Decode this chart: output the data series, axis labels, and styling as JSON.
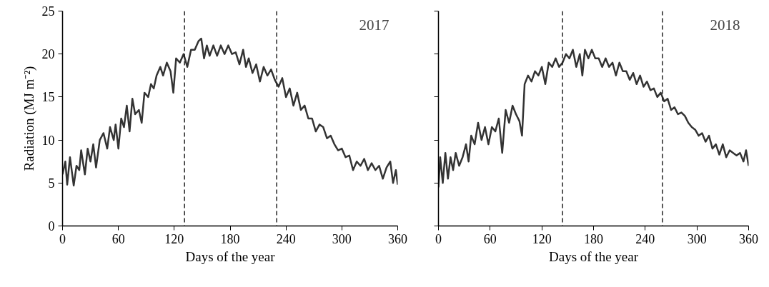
{
  "chart_data": [
    {
      "type": "line",
      "xlabel": "Days of the year",
      "ylabel": "Radiation (MJ m⁻²)",
      "annotations": [
        "2017"
      ],
      "xlim": [
        0,
        360
      ],
      "xticks": [
        0,
        60,
        120,
        180,
        240,
        300,
        360
      ],
      "ylim": [
        0,
        25
      ],
      "yticks": [
        0,
        5,
        10,
        15,
        20,
        25
      ],
      "grid": false,
      "marker": "none",
      "line_style": "solid",
      "ref_lines": [
        {
          "axis": "x",
          "value": 131,
          "label": null,
          "line_style": "dashed",
          "color": "#222222"
        },
        {
          "axis": "x",
          "value": 230,
          "label": null,
          "line_style": "dashed",
          "color": "#222222"
        }
      ],
      "series": [
        {
          "color": "#333333",
          "x": [
            0,
            3,
            5,
            8,
            12,
            15,
            18,
            20,
            24,
            27,
            30,
            33,
            36,
            40,
            44,
            48,
            51,
            55,
            57,
            60,
            63,
            66,
            69,
            72,
            75,
            78,
            82,
            85,
            88,
            92,
            95,
            98,
            101,
            105,
            108,
            112,
            116,
            119,
            122,
            126,
            130,
            134,
            138,
            142,
            146,
            149,
            152,
            155,
            158,
            162,
            166,
            170,
            174,
            178,
            182,
            186,
            190,
            194,
            197,
            200,
            204,
            208,
            212,
            216,
            220,
            224,
            228,
            232,
            236,
            240,
            244,
            248,
            252,
            256,
            260,
            264,
            268,
            272,
            276,
            280,
            284,
            288,
            292,
            296,
            300,
            304,
            308,
            312,
            316,
            320,
            324,
            328,
            332,
            336,
            340,
            344,
            348,
            352,
            355,
            358,
            360
          ],
          "values": [
            6,
            7.5,
            4.8,
            8,
            4.7,
            7,
            6.5,
            8.8,
            6,
            9,
            7.5,
            9.5,
            6.8,
            10,
            10.8,
            9,
            11.5,
            10,
            11.8,
            9,
            12.5,
            11.5,
            14,
            11,
            14.8,
            13,
            13.5,
            12,
            15.5,
            15,
            16.5,
            16,
            17.5,
            18.5,
            17.5,
            19,
            18,
            15.5,
            19.5,
            19,
            20,
            18.5,
            20.5,
            20.5,
            21.5,
            21.8,
            19.5,
            21,
            19.8,
            21,
            19.8,
            21,
            20,
            21,
            20,
            20.2,
            18.8,
            20.5,
            18.5,
            19.5,
            17.8,
            18.8,
            16.8,
            18.5,
            17.5,
            18.2,
            17,
            16.2,
            17.2,
            15,
            16,
            14,
            15.5,
            13.5,
            14,
            12.5,
            12.5,
            11,
            11.8,
            11.5,
            10.2,
            10.5,
            9.5,
            8.8,
            9,
            8,
            8.2,
            6.5,
            7.5,
            7,
            7.8,
            6.5,
            7.3,
            6.5,
            7,
            5.5,
            6.8,
            7.5,
            5,
            6.5,
            4.8
          ]
        }
      ]
    },
    {
      "type": "line",
      "xlabel": "Days of the year",
      "annotations": [
        "2018"
      ],
      "xlim": [
        0,
        360
      ],
      "xticks": [
        0,
        60,
        120,
        180,
        240,
        300,
        360
      ],
      "ylim": [
        0,
        25
      ],
      "yticks": [
        0,
        5,
        10,
        15,
        20,
        25
      ],
      "tick_labels": "x",
      "grid": false,
      "marker": "none",
      "line_style": "solid",
      "ref_lines": [
        {
          "axis": "x",
          "value": 144,
          "label": null,
          "line_style": "dashed",
          "color": "#222222"
        },
        {
          "axis": "x",
          "value": 260,
          "label": null,
          "line_style": "dashed",
          "color": "#222222"
        }
      ],
      "series": [
        {
          "color": "#333333",
          "x": [
            0,
            2,
            5,
            8,
            11,
            14,
            17,
            20,
            24,
            28,
            32,
            35,
            38,
            42,
            46,
            50,
            54,
            58,
            62,
            66,
            70,
            74,
            78,
            82,
            86,
            90,
            94,
            97,
            100,
            104,
            108,
            112,
            116,
            120,
            124,
            128,
            132,
            136,
            140,
            144,
            148,
            152,
            156,
            160,
            164,
            167,
            170,
            174,
            178,
            182,
            186,
            190,
            194,
            198,
            202,
            206,
            210,
            214,
            218,
            222,
            226,
            230,
            234,
            238,
            242,
            246,
            250,
            254,
            258,
            262,
            266,
            270,
            274,
            278,
            282,
            286,
            290,
            294,
            298,
            302,
            306,
            310,
            314,
            318,
            322,
            326,
            330,
            334,
            338,
            342,
            346,
            350,
            354,
            357,
            360
          ],
          "values": [
            4.5,
            8,
            5,
            8.5,
            5.5,
            8,
            6.5,
            8.5,
            7,
            8,
            9.5,
            7.5,
            10.5,
            9.5,
            12,
            10,
            11.5,
            9.5,
            11.5,
            11,
            12.5,
            8.5,
            13.5,
            12,
            14,
            13,
            12.2,
            10.5,
            16.5,
            17.5,
            16.8,
            18,
            17.5,
            18.5,
            16.5,
            19,
            18.5,
            19.5,
            18.5,
            19,
            20,
            19.5,
            20.5,
            18.5,
            20,
            17.5,
            20.5,
            19.5,
            20.5,
            19.5,
            19.5,
            18.5,
            19.5,
            18.5,
            19,
            17.5,
            19,
            18,
            18,
            17,
            17.8,
            16.5,
            17.5,
            16.2,
            16.8,
            15.8,
            16,
            15,
            15.5,
            14.5,
            14.8,
            13.5,
            13.8,
            13,
            13.2,
            12.8,
            12,
            11.5,
            11.2,
            10.5,
            10.8,
            9.8,
            10.5,
            9,
            9.5,
            8.3,
            9.5,
            8,
            8.8,
            8.5,
            8.2,
            8.5,
            7.5,
            8.8,
            7
          ]
        }
      ]
    }
  ]
}
